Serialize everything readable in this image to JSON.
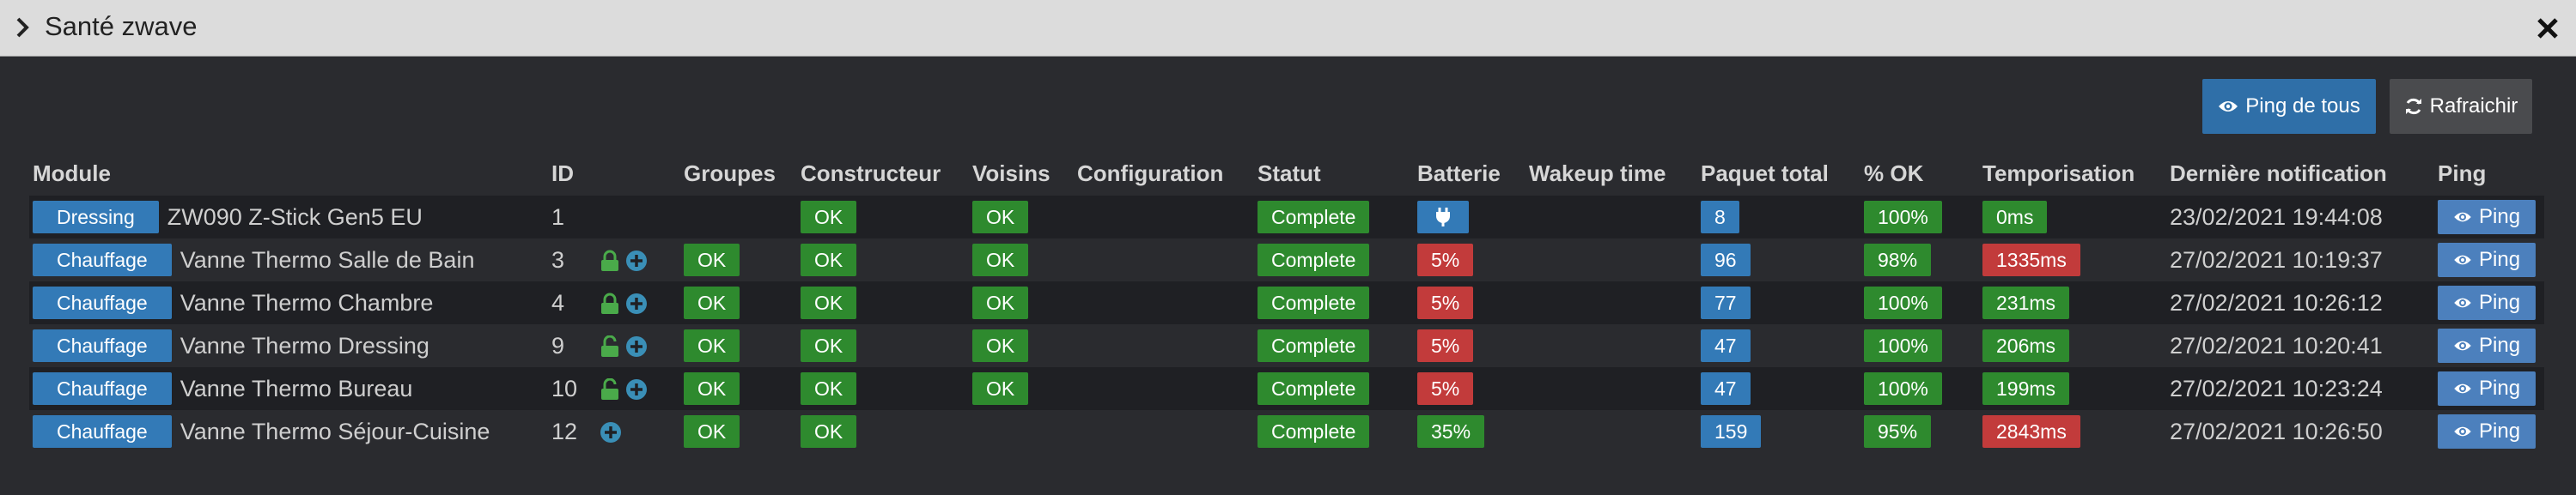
{
  "window": {
    "title": "Santé zwave"
  },
  "toolbar": {
    "ping_all_label": "Ping de tous",
    "refresh_label": "Rafraichir"
  },
  "table": {
    "headers": {
      "module": "Module",
      "id": "ID",
      "groups": "Groupes",
      "manufacturer": "Constructeur",
      "neighbors": "Voisins",
      "configuration": "Configuration",
      "status": "Statut",
      "battery": "Batterie",
      "wakeup": "Wakeup time",
      "packets": "Paquet total",
      "ok_pct": "% OK",
      "delay": "Temporisation",
      "last_notification": "Dernière notification",
      "ping": "Ping"
    },
    "rows": [
      {
        "category": "Dressing",
        "name": "ZW090 Z-Stick Gen5 EU",
        "id": "1",
        "lock": "",
        "plus": false,
        "groups": "",
        "manufacturer": "OK",
        "neighbors": "OK",
        "configuration": "",
        "status": "Complete",
        "battery": "plug",
        "battery_color": "blue",
        "wakeup": "",
        "packets": "8",
        "ok_pct": "100%",
        "delay": "0ms",
        "delay_color": "green",
        "last": "23/02/2021 19:44:08",
        "ping": "Ping"
      },
      {
        "category": "Chauffage",
        "name": "Vanne Thermo Salle de Bain",
        "id": "3",
        "lock": "closed",
        "plus": true,
        "groups": "OK",
        "manufacturer": "OK",
        "neighbors": "OK",
        "configuration": "",
        "status": "Complete",
        "battery": "5%",
        "battery_color": "red",
        "wakeup": "",
        "packets": "96",
        "ok_pct": "98%",
        "delay": "1335ms",
        "delay_color": "red",
        "last": "27/02/2021 10:19:37",
        "ping": "Ping"
      },
      {
        "category": "Chauffage",
        "name": "Vanne Thermo Chambre",
        "id": "4",
        "lock": "closed",
        "plus": true,
        "groups": "OK",
        "manufacturer": "OK",
        "neighbors": "OK",
        "configuration": "",
        "status": "Complete",
        "battery": "5%",
        "battery_color": "red",
        "wakeup": "",
        "packets": "77",
        "ok_pct": "100%",
        "delay": "231ms",
        "delay_color": "green",
        "last": "27/02/2021 10:26:12",
        "ping": "Ping"
      },
      {
        "category": "Chauffage",
        "name": "Vanne Thermo Dressing",
        "id": "9",
        "lock": "open",
        "plus": true,
        "groups": "OK",
        "manufacturer": "OK",
        "neighbors": "OK",
        "configuration": "",
        "status": "Complete",
        "battery": "5%",
        "battery_color": "red",
        "wakeup": "",
        "packets": "47",
        "ok_pct": "100%",
        "delay": "206ms",
        "delay_color": "green",
        "last": "27/02/2021 10:20:41",
        "ping": "Ping"
      },
      {
        "category": "Chauffage",
        "name": "Vanne Thermo Bureau",
        "id": "10",
        "lock": "open",
        "plus": true,
        "groups": "OK",
        "manufacturer": "OK",
        "neighbors": "OK",
        "configuration": "",
        "status": "Complete",
        "battery": "5%",
        "battery_color": "red",
        "wakeup": "",
        "packets": "47",
        "ok_pct": "100%",
        "delay": "199ms",
        "delay_color": "green",
        "last": "27/02/2021 10:23:24",
        "ping": "Ping"
      },
      {
        "category": "Chauffage",
        "name": "Vanne Thermo Séjour-Cuisine",
        "id": "12",
        "lock": "",
        "plus": true,
        "groups": "OK",
        "manufacturer": "OK",
        "neighbors": "",
        "configuration": "",
        "status": "Complete",
        "battery": "35%",
        "battery_color": "green",
        "wakeup": "",
        "packets": "159",
        "ok_pct": "95%",
        "delay": "2843ms",
        "delay_color": "red",
        "last": "27/02/2021 10:26:50",
        "ping": "Ping"
      }
    ]
  },
  "icons": {
    "title_chevron": "chevron-right-icon",
    "close": "close-icon",
    "ping_all": "eye-icon",
    "refresh": "refresh-icon",
    "lock_closed": "lock-icon",
    "lock_open": "unlock-icon",
    "plus": "plus-circle-icon",
    "plug": "plug-icon"
  },
  "colors": {
    "background": "#2a2b2f",
    "row_alt": "#1f2024",
    "titlebar": "#dcdcdc",
    "label_blue": "#337ab7",
    "label_green": "#2e8a2e",
    "label_red": "#c23b3b",
    "ping_button": "#4c80bd",
    "icon_teal": "#3a8fb7",
    "icon_green": "#4aaa4a"
  }
}
